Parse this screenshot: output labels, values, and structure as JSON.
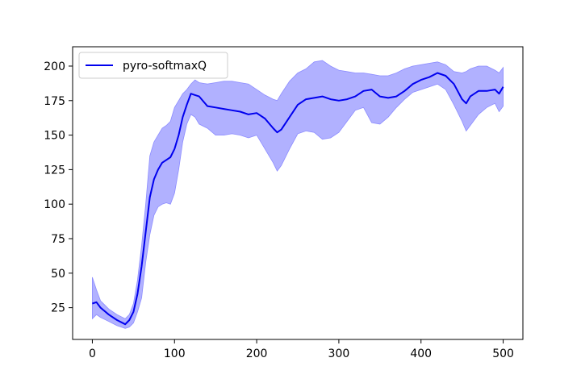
{
  "chart_data": {
    "type": "line",
    "title": "",
    "xlabel": "",
    "ylabel": "",
    "xlim": [
      -24,
      524
    ],
    "ylim": [
      2,
      214
    ],
    "xticks": [
      0,
      100,
      200,
      300,
      400,
      500
    ],
    "yticks": [
      25,
      50,
      75,
      100,
      125,
      150,
      175,
      200
    ],
    "grid": false,
    "legend": {
      "position": "top-left",
      "entries": [
        "pyro-softmaxQ"
      ]
    },
    "colors": {
      "line": "#0000ee",
      "band": "#8c8cff",
      "axes": "#000000"
    },
    "series": [
      {
        "name": "pyro-softmaxQ",
        "x": [
          0,
          5,
          10,
          20,
          30,
          40,
          45,
          50,
          55,
          60,
          65,
          70,
          75,
          80,
          85,
          90,
          95,
          100,
          105,
          110,
          115,
          120,
          125,
          130,
          140,
          150,
          160,
          170,
          180,
          190,
          200,
          210,
          220,
          225,
          230,
          240,
          250,
          260,
          270,
          280,
          290,
          300,
          310,
          320,
          330,
          340,
          350,
          360,
          370,
          380,
          390,
          400,
          410,
          420,
          430,
          440,
          450,
          455,
          460,
          470,
          480,
          490,
          495,
          500
        ],
        "mean": [
          28,
          29,
          25,
          20,
          16,
          13,
          16,
          22,
          35,
          55,
          80,
          105,
          118,
          125,
          130,
          132,
          134,
          140,
          150,
          163,
          172,
          180,
          179,
          178,
          171,
          170,
          169,
          168,
          167,
          165,
          166,
          162,
          155,
          152,
          154,
          163,
          172,
          176,
          177,
          178,
          176,
          175,
          176,
          178,
          182,
          183,
          178,
          177,
          178,
          182,
          187,
          190,
          192,
          195,
          193,
          187,
          176,
          173,
          178,
          182,
          182,
          183,
          180,
          185
        ],
        "upper": [
          47,
          38,
          30,
          24,
          20,
          17,
          20,
          28,
          45,
          70,
          100,
          135,
          145,
          150,
          155,
          157,
          160,
          170,
          175,
          180,
          183,
          187,
          190,
          188,
          187,
          188,
          189,
          189,
          188,
          187,
          183,
          179,
          176,
          175,
          180,
          189,
          195,
          198,
          203,
          204,
          200,
          197,
          196,
          195,
          195,
          194,
          193,
          193,
          195,
          198,
          200,
          201,
          202,
          203,
          201,
          196,
          195,
          196,
          198,
          200,
          200,
          197,
          195,
          199
        ],
        "lower": [
          17,
          20,
          18,
          15,
          12,
          10,
          11,
          14,
          22,
          32,
          58,
          78,
          92,
          98,
          100,
          101,
          100,
          108,
          125,
          145,
          158,
          165,
          163,
          158,
          155,
          150,
          150,
          151,
          150,
          148,
          150,
          140,
          130,
          124,
          128,
          140,
          151,
          153,
          152,
          147,
          148,
          152,
          160,
          168,
          170,
          159,
          158,
          163,
          170,
          176,
          181,
          183,
          185,
          187,
          183,
          172,
          160,
          153,
          157,
          165,
          170,
          173,
          167,
          171
        ]
      }
    ]
  }
}
